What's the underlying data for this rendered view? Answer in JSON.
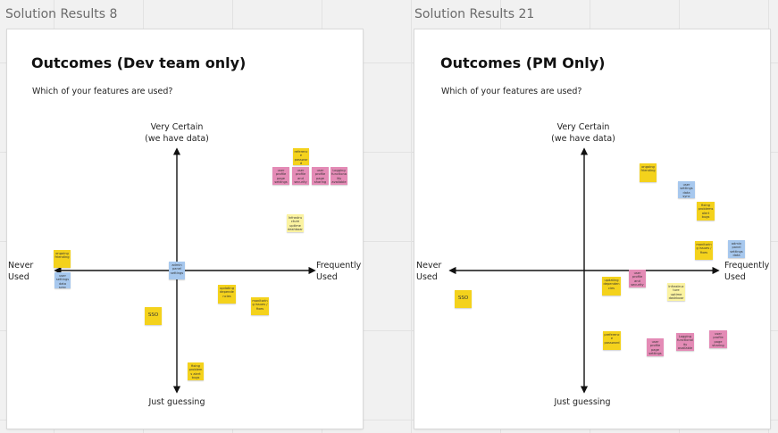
{
  "colors": {
    "yellow": "#f4d21c",
    "lightyellow": "#fbf3a1",
    "pink": "#e48bb6",
    "blue": "#a7c8ee",
    "canvas": "#f1f1f1"
  },
  "frames": [
    {
      "frame_label": "Solution Results 8",
      "title": "Outcomes (Dev team only)",
      "question": "Which of your features are used?",
      "axis": {
        "top": "Very Certain",
        "top2": "(we have data)",
        "bottom": "Just guessing",
        "left": "Never",
        "left2": "Used",
        "right": "Frequently",
        "right2": "Used"
      },
      "notes": [
        {
          "color": "yellow",
          "text": "reference password"
        },
        {
          "color": "pink",
          "text": "user profile page settings notifications"
        },
        {
          "color": "pink",
          "text": "user profile and security setup"
        },
        {
          "color": "pink",
          "text": "user profile page sharing"
        },
        {
          "color": "pink",
          "text": "Logging functionality available 10 - 20"
        },
        {
          "color": "lightyellow",
          "text": "Infrastructure uptime dashboards control panel"
        },
        {
          "color": "yellow",
          "text": "ongoing friending"
        },
        {
          "color": "blue",
          "text": "user settings data sync notifications"
        },
        {
          "color": "blue",
          "text": "admin panel settings"
        },
        {
          "color": "yellow",
          "text": "updating dependencies"
        },
        {
          "color": "yellow",
          "text": "monitoring issues / fixes"
        },
        {
          "color": "yellow",
          "text": "SSO"
        },
        {
          "color": "yellow",
          "text": "fixing problems alert bugs"
        }
      ]
    },
    {
      "frame_label": "Solution Results 21",
      "title": "Outcomes (PM Only)",
      "question": "Which of your features are used?",
      "axis": {
        "top": "Very Certain",
        "top2": "(we have data)",
        "bottom": "Just guessing",
        "left": "Never",
        "left2": "Used",
        "right": "Frequently",
        "right2": "Used"
      },
      "notes": [
        {
          "color": "yellow",
          "text": "ongoing friending"
        },
        {
          "color": "blue",
          "text": "user settings data sync notifications"
        },
        {
          "color": "yellow",
          "text": "fixing problems alert bugs"
        },
        {
          "color": "yellow",
          "text": "monitoring issues / fixes"
        },
        {
          "color": "blue",
          "text": "admin panel settings data"
        },
        {
          "color": "pink",
          "text": "user profile and security setup"
        },
        {
          "color": "yellow",
          "text": "updating dependencies"
        },
        {
          "color": "lightyellow",
          "text": "Infrastructure uptime dashboards control panel"
        },
        {
          "color": "yellow",
          "text": "SSO"
        },
        {
          "color": "yellow",
          "text": "preference password"
        },
        {
          "color": "pink",
          "text": "user profile page settings notifications"
        },
        {
          "color": "pink",
          "text": "Logging functionality available 10 - 20"
        },
        {
          "color": "pink",
          "text": "user profile page sharing"
        }
      ]
    }
  ]
}
